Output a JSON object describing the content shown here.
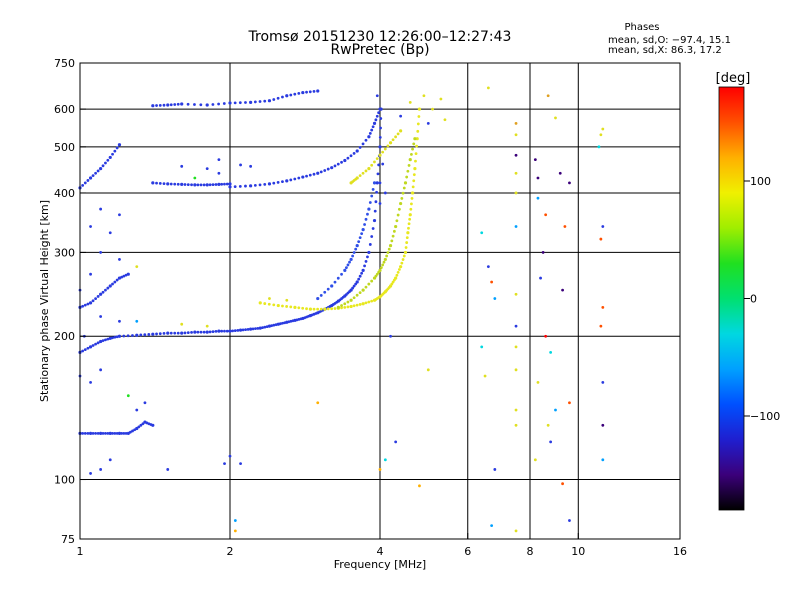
{
  "header": {
    "title": "Tromsø 20151230 12:26:00–12:27:43",
    "subtitle": "RwPretec (Bp)",
    "phases_title": "Phases",
    "phases_o": "mean, sd,O: −97.4, 15.1",
    "phases_x": "mean, sd,X:  86.3, 17.2"
  },
  "chart_data": {
    "type": "scatter",
    "xlabel": "Frequency [MHz]",
    "ylabel": "Stationary phase Virtual Height [km]",
    "x_scale": "log",
    "y_scale": "log",
    "xlim": [
      1,
      16
    ],
    "ylim": [
      75,
      750
    ],
    "x_ticks": [
      1,
      2,
      4,
      6,
      8,
      10,
      16
    ],
    "x_tick_labels": [
      "1",
      "2",
      "4",
      "6",
      "8",
      "10",
      "16"
    ],
    "y_ticks": [
      75,
      100,
      200,
      300,
      400,
      500,
      600,
      750
    ],
    "y_tick_labels": [
      "75",
      "100",
      "200",
      "300",
      "400",
      "500",
      "600",
      "750"
    ],
    "grid": true,
    "colorbar": {
      "label": "[deg]",
      "range": [
        -180,
        180
      ],
      "ticks": [
        100,
        0,
        -100
      ],
      "tick_labels": [
        "100",
        "0",
        "−100"
      ],
      "stops": [
        "#000000",
        "#3b007a",
        "#1f1fd0",
        "#0050ff",
        "#00a0ff",
        "#00d8e0",
        "#00e070",
        "#20e020",
        "#a0ee00",
        "#f0f000",
        "#ffb000",
        "#ff5000",
        "#ff0000"
      ]
    },
    "traces": [
      {
        "name": "",
        "color": "#2a3be0",
        "points": [
          [
            1.0,
            185
          ],
          [
            1.05,
            190
          ],
          [
            1.1,
            195
          ],
          [
            1.15,
            198
          ],
          [
            1.2,
            200
          ],
          [
            1.3,
            201
          ],
          [
            1.4,
            202
          ],
          [
            1.5,
            203
          ],
          [
            1.6,
            203
          ],
          [
            1.7,
            204
          ],
          [
            1.8,
            204
          ],
          [
            1.9,
            205
          ],
          [
            2.0,
            205
          ],
          [
            2.1,
            206
          ],
          [
            2.2,
            207
          ],
          [
            2.3,
            208
          ],
          [
            2.4,
            210
          ],
          [
            2.5,
            212
          ],
          [
            2.6,
            214
          ],
          [
            2.7,
            216
          ],
          [
            2.8,
            218
          ],
          [
            2.9,
            221
          ],
          [
            3.0,
            224
          ],
          [
            3.1,
            228
          ],
          [
            3.2,
            232
          ],
          [
            3.3,
            237
          ],
          [
            3.4,
            243
          ],
          [
            3.5,
            250
          ],
          [
            3.6,
            260
          ],
          [
            3.7,
            275
          ],
          [
            3.8,
            300
          ],
          [
            3.9,
            350
          ],
          [
            3.95,
            420
          ],
          [
            4.0,
            500
          ],
          [
            4.02,
            600
          ]
        ]
      },
      {
        "name": "",
        "color": "#e8e820",
        "points": [
          [
            2.3,
            235
          ],
          [
            2.5,
            232
          ],
          [
            2.7,
            230
          ],
          [
            2.9,
            228
          ],
          [
            3.1,
            228
          ],
          [
            3.3,
            229
          ],
          [
            3.5,
            231
          ],
          [
            3.7,
            234
          ],
          [
            3.9,
            238
          ],
          [
            4.0,
            242
          ],
          [
            4.1,
            248
          ],
          [
            4.2,
            255
          ],
          [
            4.3,
            265
          ],
          [
            4.4,
            280
          ],
          [
            4.5,
            300
          ],
          [
            4.55,
            330
          ],
          [
            4.6,
            360
          ],
          [
            4.65,
            400
          ],
          [
            4.7,
            450
          ],
          [
            4.75,
            520
          ],
          [
            4.8,
            600
          ]
        ]
      },
      {
        "name": "",
        "color": "#c0d820",
        "points": [
          [
            3.3,
            230
          ],
          [
            3.5,
            238
          ],
          [
            3.7,
            250
          ],
          [
            3.9,
            265
          ],
          [
            4.0,
            275
          ],
          [
            4.1,
            290
          ],
          [
            4.2,
            310
          ],
          [
            4.3,
            340
          ],
          [
            4.4,
            380
          ],
          [
            4.5,
            420
          ],
          [
            4.6,
            470
          ],
          [
            4.7,
            520
          ]
        ]
      },
      {
        "name": "",
        "color": "#2a3be0",
        "points": [
          [
            2.0,
            412
          ],
          [
            2.2,
            414
          ],
          [
            2.4,
            418
          ],
          [
            2.6,
            424
          ],
          [
            2.8,
            432
          ],
          [
            3.0,
            440
          ],
          [
            3.2,
            452
          ],
          [
            3.4,
            468
          ],
          [
            3.6,
            490
          ],
          [
            3.8,
            525
          ],
          [
            3.9,
            560
          ],
          [
            4.0,
            600
          ]
        ]
      },
      {
        "name": "",
        "color": "#2a3be0",
        "points": [
          [
            1.4,
            420
          ],
          [
            1.5,
            418
          ],
          [
            1.6,
            417
          ],
          [
            1.7,
            416
          ],
          [
            1.8,
            416
          ],
          [
            1.9,
            417
          ],
          [
            2.0,
            418
          ]
        ]
      },
      {
        "name": "",
        "color": "#3050e8",
        "points": [
          [
            3.0,
            240
          ],
          [
            3.2,
            255
          ],
          [
            3.4,
            275
          ],
          [
            3.5,
            290
          ],
          [
            3.6,
            310
          ],
          [
            3.7,
            335
          ],
          [
            3.8,
            370
          ],
          [
            3.9,
            420
          ]
        ]
      },
      {
        "name": "",
        "color": "#e0e020",
        "points": [
          [
            3.5,
            420
          ],
          [
            3.6,
            430
          ],
          [
            3.8,
            450
          ],
          [
            4.0,
            480
          ],
          [
            4.2,
            510
          ],
          [
            4.4,
            540
          ]
        ]
      },
      {
        "name": "",
        "color": "#2a3be0",
        "points": [
          [
            1.4,
            610
          ],
          [
            1.5,
            612
          ],
          [
            1.6,
            615
          ],
          [
            1.8,
            612
          ],
          [
            2.0,
            618
          ],
          [
            2.2,
            620
          ],
          [
            2.4,
            625
          ],
          [
            2.6,
            640
          ],
          [
            2.8,
            650
          ],
          [
            3.0,
            655
          ]
        ]
      },
      {
        "name": "",
        "color": "#2a3be0",
        "points": [
          [
            1.0,
            410
          ],
          [
            1.05,
            430
          ],
          [
            1.1,
            450
          ],
          [
            1.15,
            475
          ],
          [
            1.2,
            505
          ]
        ]
      },
      {
        "name": "",
        "color": "#2a3be0",
        "points": [
          [
            1.0,
            125
          ],
          [
            1.05,
            125
          ],
          [
            1.1,
            125
          ],
          [
            1.15,
            125
          ],
          [
            1.2,
            125
          ],
          [
            1.25,
            125
          ],
          [
            1.3,
            128
          ],
          [
            1.35,
            132
          ],
          [
            1.4,
            130
          ]
        ]
      },
      {
        "name": "",
        "color": "#2a3be0",
        "points": [
          [
            1.0,
            230
          ],
          [
            1.05,
            235
          ],
          [
            1.1,
            245
          ],
          [
            1.15,
            255
          ],
          [
            1.2,
            265
          ],
          [
            1.25,
            270
          ]
        ]
      }
    ],
    "scatter": [
      {
        "x": 4.0,
        "y": 380,
        "color": "#2a3be0"
      },
      {
        "x": 4.0,
        "y": 420,
        "color": "#2a3be0"
      },
      {
        "x": 4.05,
        "y": 460,
        "color": "#2a3be0"
      },
      {
        "x": 4.1,
        "y": 400,
        "color": "#2a3be0"
      },
      {
        "x": 3.95,
        "y": 640,
        "color": "#2a3be0"
      },
      {
        "x": 4.4,
        "y": 580,
        "color": "#2a3be0"
      },
      {
        "x": 4.6,
        "y": 620,
        "color": "#e0e020"
      },
      {
        "x": 4.9,
        "y": 640,
        "color": "#e0e020"
      },
      {
        "x": 5.1,
        "y": 600,
        "color": "#e0e020"
      },
      {
        "x": 5.3,
        "y": 630,
        "color": "#e0e020"
      },
      {
        "x": 5.4,
        "y": 570,
        "color": "#e0e020"
      },
      {
        "x": 5.0,
        "y": 560,
        "color": "#2a3be0"
      },
      {
        "x": 6.6,
        "y": 665,
        "color": "#e0e020"
      },
      {
        "x": 7.5,
        "y": 560,
        "color": "#e0a020"
      },
      {
        "x": 7.5,
        "y": 530,
        "color": "#e0e020"
      },
      {
        "x": 7.5,
        "y": 480,
        "color": "#3b007a"
      },
      {
        "x": 7.5,
        "y": 440,
        "color": "#e0e020"
      },
      {
        "x": 7.5,
        "y": 400,
        "color": "#e0e020"
      },
      {
        "x": 7.5,
        "y": 340,
        "color": "#00a0ff"
      },
      {
        "x": 6.4,
        "y": 330,
        "color": "#00d8e0"
      },
      {
        "x": 6.6,
        "y": 280,
        "color": "#2a3be0"
      },
      {
        "x": 6.7,
        "y": 260,
        "color": "#ff5000"
      },
      {
        "x": 6.8,
        "y": 240,
        "color": "#00a0ff"
      },
      {
        "x": 6.4,
        "y": 190,
        "color": "#00d8e0"
      },
      {
        "x": 6.5,
        "y": 165,
        "color": "#e0e020"
      },
      {
        "x": 7.5,
        "y": 245,
        "color": "#e0e020"
      },
      {
        "x": 7.5,
        "y": 210,
        "color": "#2a3be0"
      },
      {
        "x": 7.5,
        "y": 190,
        "color": "#e0e020"
      },
      {
        "x": 7.5,
        "y": 170,
        "color": "#e0e020"
      },
      {
        "x": 7.5,
        "y": 140,
        "color": "#e0e020"
      },
      {
        "x": 7.5,
        "y": 130,
        "color": "#e0e020"
      },
      {
        "x": 6.8,
        "y": 105,
        "color": "#2a3be0"
      },
      {
        "x": 6.7,
        "y": 80,
        "color": "#00a0ff"
      },
      {
        "x": 7.5,
        "y": 78,
        "color": "#e0e020"
      },
      {
        "x": 8.2,
        "y": 470,
        "color": "#3b007a"
      },
      {
        "x": 8.3,
        "y": 430,
        "color": "#3b007a"
      },
      {
        "x": 8.3,
        "y": 390,
        "color": "#00a0ff"
      },
      {
        "x": 8.6,
        "y": 360,
        "color": "#ff5000"
      },
      {
        "x": 8.5,
        "y": 300,
        "color": "#3b007a"
      },
      {
        "x": 8.4,
        "y": 265,
        "color": "#2a3be0"
      },
      {
        "x": 8.6,
        "y": 200,
        "color": "#ff0000"
      },
      {
        "x": 8.8,
        "y": 185,
        "color": "#00d8e0"
      },
      {
        "x": 8.3,
        "y": 160,
        "color": "#e0e020"
      },
      {
        "x": 8.7,
        "y": 130,
        "color": "#e0e020"
      },
      {
        "x": 8.8,
        "y": 120,
        "color": "#2a3be0"
      },
      {
        "x": 8.2,
        "y": 110,
        "color": "#e0e020"
      },
      {
        "x": 9.2,
        "y": 440,
        "color": "#3b007a"
      },
      {
        "x": 9.6,
        "y": 420,
        "color": "#3b007a"
      },
      {
        "x": 9.0,
        "y": 575,
        "color": "#e0e020"
      },
      {
        "x": 9.4,
        "y": 340,
        "color": "#ff5000"
      },
      {
        "x": 9.3,
        "y": 250,
        "color": "#3b007a"
      },
      {
        "x": 9.6,
        "y": 145,
        "color": "#ff5000"
      },
      {
        "x": 9.0,
        "y": 140,
        "color": "#00a0ff"
      },
      {
        "x": 9.3,
        "y": 98,
        "color": "#ff5000"
      },
      {
        "x": 9.6,
        "y": 82,
        "color": "#2a3be0"
      },
      {
        "x": 8.7,
        "y": 640,
        "color": "#e0a020"
      },
      {
        "x": 11.2,
        "y": 545,
        "color": "#e0e020"
      },
      {
        "x": 11.1,
        "y": 530,
        "color": "#e0e020"
      },
      {
        "x": 11.0,
        "y": 500,
        "color": "#00d8e0"
      },
      {
        "x": 11.2,
        "y": 340,
        "color": "#2a3be0"
      },
      {
        "x": 11.1,
        "y": 320,
        "color": "#ff5000"
      },
      {
        "x": 11.2,
        "y": 230,
        "color": "#ff5000"
      },
      {
        "x": 11.1,
        "y": 210,
        "color": "#ff5000"
      },
      {
        "x": 11.2,
        "y": 160,
        "color": "#2a3be0"
      },
      {
        "x": 11.2,
        "y": 130,
        "color": "#3b007a"
      },
      {
        "x": 11.2,
        "y": 110,
        "color": "#00a0ff"
      },
      {
        "x": 2.0,
        "y": 112,
        "color": "#2a3be0"
      },
      {
        "x": 2.1,
        "y": 108,
        "color": "#2a3be0"
      },
      {
        "x": 1.95,
        "y": 108,
        "color": "#2a3be0"
      },
      {
        "x": 2.05,
        "y": 78,
        "color": "#ffb000"
      },
      {
        "x": 2.05,
        "y": 82,
        "color": "#00a0ff"
      },
      {
        "x": 3.0,
        "y": 145,
        "color": "#ffb000"
      },
      {
        "x": 1.1,
        "y": 105,
        "color": "#2a3be0"
      },
      {
        "x": 1.05,
        "y": 103,
        "color": "#2a3be0"
      },
      {
        "x": 1.15,
        "y": 110,
        "color": "#2a3be0"
      },
      {
        "x": 1.3,
        "y": 140,
        "color": "#2a3be0"
      },
      {
        "x": 1.25,
        "y": 150,
        "color": "#20e020"
      },
      {
        "x": 1.35,
        "y": 145,
        "color": "#2a3be0"
      },
      {
        "x": 1.5,
        "y": 105,
        "color": "#2a3be0"
      },
      {
        "x": 1.05,
        "y": 160,
        "color": "#2a3be0"
      },
      {
        "x": 1.1,
        "y": 170,
        "color": "#2a3be0"
      },
      {
        "x": 1.0,
        "y": 165,
        "color": "#2a3be0"
      },
      {
        "x": 1.02,
        "y": 200,
        "color": "#2a3be0"
      },
      {
        "x": 4.0,
        "y": 105,
        "color": "#ffb000"
      },
      {
        "x": 4.1,
        "y": 110,
        "color": "#00d8e0"
      },
      {
        "x": 4.3,
        "y": 120,
        "color": "#2a3be0"
      },
      {
        "x": 4.8,
        "y": 97,
        "color": "#ffb000"
      },
      {
        "x": 4.2,
        "y": 200,
        "color": "#2a3be0"
      },
      {
        "x": 5.0,
        "y": 170,
        "color": "#e0e020"
      },
      {
        "x": 1.6,
        "y": 455,
        "color": "#2a3be0"
      },
      {
        "x": 1.8,
        "y": 450,
        "color": "#2a3be0"
      },
      {
        "x": 2.1,
        "y": 458,
        "color": "#2a3be0"
      },
      {
        "x": 2.2,
        "y": 455,
        "color": "#2a3be0"
      },
      {
        "x": 1.7,
        "y": 430,
        "color": "#20e020"
      },
      {
        "x": 1.9,
        "y": 440,
        "color": "#2a3be0"
      },
      {
        "x": 1.9,
        "y": 470,
        "color": "#2a3be0"
      },
      {
        "x": 1.1,
        "y": 370,
        "color": "#2a3be0"
      },
      {
        "x": 1.2,
        "y": 360,
        "color": "#2a3be0"
      },
      {
        "x": 1.05,
        "y": 340,
        "color": "#2a3be0"
      },
      {
        "x": 1.15,
        "y": 330,
        "color": "#2a3be0"
      },
      {
        "x": 1.1,
        "y": 300,
        "color": "#2a3be0"
      },
      {
        "x": 1.2,
        "y": 290,
        "color": "#2a3be0"
      },
      {
        "x": 1.3,
        "y": 280,
        "color": "#e0e020"
      },
      {
        "x": 1.05,
        "y": 270,
        "color": "#2a3be0"
      },
      {
        "x": 1.0,
        "y": 250,
        "color": "#2a3be0"
      },
      {
        "x": 1.1,
        "y": 220,
        "color": "#2a3be0"
      },
      {
        "x": 1.2,
        "y": 215,
        "color": "#2a3be0"
      },
      {
        "x": 1.3,
        "y": 215,
        "color": "#00a0ff"
      },
      {
        "x": 1.6,
        "y": 212,
        "color": "#e0e020"
      },
      {
        "x": 1.8,
        "y": 210,
        "color": "#e0e020"
      },
      {
        "x": 2.4,
        "y": 240,
        "color": "#e0e020"
      },
      {
        "x": 2.6,
        "y": 238,
        "color": "#e0e020"
      }
    ]
  }
}
